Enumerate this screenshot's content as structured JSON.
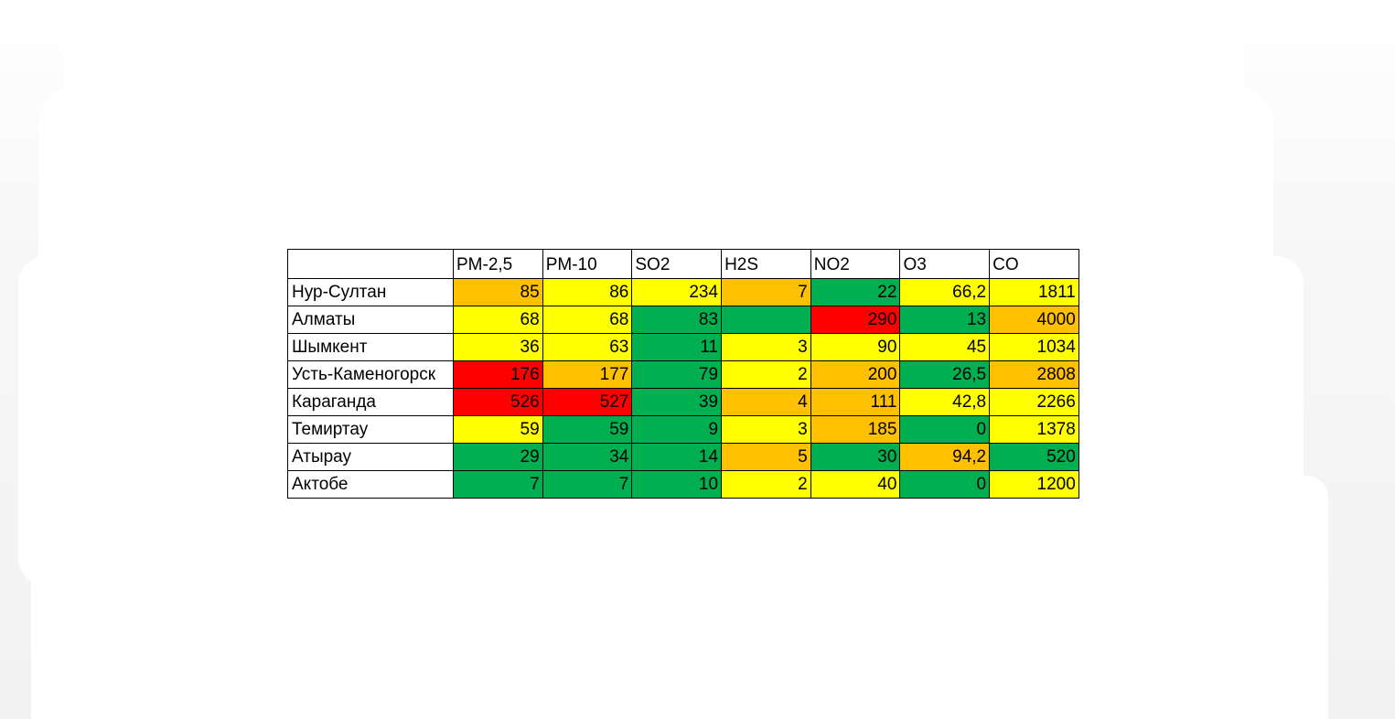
{
  "colors": {
    "green": "#00B050",
    "yellow": "#FFFF00",
    "orange": "#FFC000",
    "red": "#FF0000"
  },
  "table": {
    "corner": "",
    "headers": [
      "PM-2,5",
      "PM-10",
      "SO2",
      "H2S",
      "NO2",
      "O3",
      "CO"
    ],
    "rows": [
      {
        "city": "Нур-Султан",
        "cells": [
          {
            "v": "85",
            "c": "orange"
          },
          {
            "v": "86",
            "c": "yellow"
          },
          {
            "v": "234",
            "c": "yellow"
          },
          {
            "v": "7",
            "c": "orange"
          },
          {
            "v": "22",
            "c": "green"
          },
          {
            "v": "66,2",
            "c": "yellow"
          },
          {
            "v": "1811",
            "c": "yellow"
          }
        ]
      },
      {
        "city": "Алматы",
        "cells": [
          {
            "v": "68",
            "c": "yellow"
          },
          {
            "v": "68",
            "c": "yellow"
          },
          {
            "v": "83",
            "c": "green"
          },
          {
            "v": "",
            "c": "green"
          },
          {
            "v": "290",
            "c": "red"
          },
          {
            "v": "13",
            "c": "green"
          },
          {
            "v": "4000",
            "c": "orange"
          }
        ]
      },
      {
        "city": "Шымкент",
        "cells": [
          {
            "v": "36",
            "c": "yellow"
          },
          {
            "v": "63",
            "c": "yellow"
          },
          {
            "v": "11",
            "c": "green"
          },
          {
            "v": "3",
            "c": "yellow"
          },
          {
            "v": "90",
            "c": "yellow"
          },
          {
            "v": "45",
            "c": "yellow"
          },
          {
            "v": "1034",
            "c": "yellow"
          }
        ]
      },
      {
        "city": "Усть-Каменогорск",
        "cells": [
          {
            "v": "176",
            "c": "red"
          },
          {
            "v": "177",
            "c": "orange"
          },
          {
            "v": "79",
            "c": "green"
          },
          {
            "v": "2",
            "c": "yellow"
          },
          {
            "v": "200",
            "c": "orange"
          },
          {
            "v": "26,5",
            "c": "green"
          },
          {
            "v": "2808",
            "c": "orange"
          }
        ]
      },
      {
        "city": "Караганда",
        "cells": [
          {
            "v": "526",
            "c": "red"
          },
          {
            "v": "527",
            "c": "red"
          },
          {
            "v": "39",
            "c": "green"
          },
          {
            "v": "4",
            "c": "orange"
          },
          {
            "v": "111",
            "c": "orange"
          },
          {
            "v": "42,8",
            "c": "yellow"
          },
          {
            "v": "2266",
            "c": "yellow"
          }
        ]
      },
      {
        "city": "Темиртау",
        "cells": [
          {
            "v": "59",
            "c": "yellow"
          },
          {
            "v": "59",
            "c": "green"
          },
          {
            "v": "9",
            "c": "green"
          },
          {
            "v": "3",
            "c": "yellow"
          },
          {
            "v": "185",
            "c": "orange"
          },
          {
            "v": "0",
            "c": "green"
          },
          {
            "v": "1378",
            "c": "yellow"
          }
        ]
      },
      {
        "city": "Атырау",
        "cells": [
          {
            "v": "29",
            "c": "green"
          },
          {
            "v": "34",
            "c": "green"
          },
          {
            "v": "14",
            "c": "green"
          },
          {
            "v": "5",
            "c": "orange"
          },
          {
            "v": "30",
            "c": "green"
          },
          {
            "v": "94,2",
            "c": "orange"
          },
          {
            "v": "520",
            "c": "green"
          }
        ]
      },
      {
        "city": "Актобе",
        "cells": [
          {
            "v": "7",
            "c": "green"
          },
          {
            "v": "7",
            "c": "green"
          },
          {
            "v": "10",
            "c": "green"
          },
          {
            "v": "2",
            "c": "yellow"
          },
          {
            "v": "40",
            "c": "yellow"
          },
          {
            "v": "0",
            "c": "green"
          },
          {
            "v": "1200",
            "c": "yellow"
          }
        ]
      }
    ]
  }
}
